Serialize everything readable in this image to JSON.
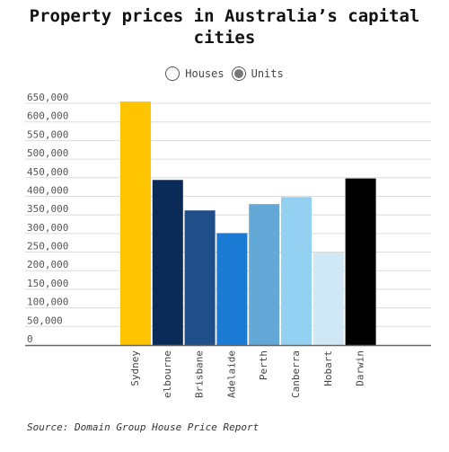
{
  "title": "Property prices in Australia’s capital cities",
  "legend": {
    "options": [
      {
        "label": "Houses",
        "selected": false
      },
      {
        "label": "Units",
        "selected": true
      }
    ]
  },
  "source": "Source: Domain Group House Price Report",
  "chart_data": {
    "type": "bar",
    "categories": [
      "Sydney",
      "elbourne",
      "Brisbane",
      "Adelaide",
      "Perth",
      "Canberra",
      "Hobart",
      "Darwin"
    ],
    "values": [
      655000,
      444000,
      362000,
      301000,
      379000,
      398000,
      249000,
      448000
    ],
    "colors": [
      "#FFC400",
      "#0A2A57",
      "#1F4E89",
      "#1B7BD4",
      "#64A8D7",
      "#94D0F2",
      "#D0E8F5",
      "#000000"
    ],
    "yticks": [
      "0",
      "50,000",
      "100,000",
      "150,000",
      "200,000",
      "250,000",
      "300,000",
      "350,000",
      "400,000",
      "450,000",
      "500,000",
      "550,000",
      "600,000",
      "650,000"
    ],
    "ylim": [
      0,
      650000
    ],
    "grid": true,
    "xlabel": "",
    "ylabel": ""
  }
}
